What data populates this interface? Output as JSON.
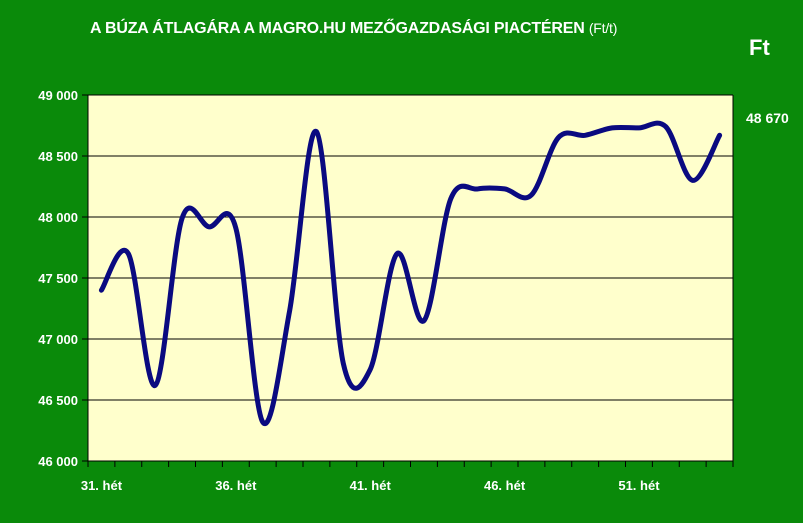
{
  "title": "A BÚZA ÁTLAGÁRA A MAGRO.HU MEZŐGAZDASÁGI PIACTÉREN",
  "title_unit": "(Ft/t)",
  "unit_label": "Ft",
  "last_value_label": "48 670",
  "colors": {
    "background": "#0a8a0a",
    "plot_area": "#ffffcc",
    "line": "#0a0a80",
    "grid": "#000000",
    "text": "#ffffff"
  },
  "chart_data": {
    "type": "line",
    "title": "A BÚZA ÁTLAGÁRA A MAGRO.HU MEZŐGAZDASÁGI PIACTÉREN (Ft/t)",
    "ylim": [
      46000,
      49000
    ],
    "yticks": [
      46000,
      46500,
      47000,
      47500,
      48000,
      48500,
      49000
    ],
    "ytick_labels": [
      "46 000",
      "46 500",
      "47 000",
      "47 500",
      "48 000",
      "48 500",
      "49 000"
    ],
    "xlim": [
      30.5,
      54.5
    ],
    "xticks": [
      31,
      36,
      41,
      46,
      51
    ],
    "xtick_labels": [
      "31. hét",
      "36. hét",
      "41. hét",
      "46. hét",
      "51. hét"
    ],
    "grid": "horizontal",
    "series": [
      {
        "x": [
          31,
          32,
          33,
          34,
          35,
          36,
          37,
          38,
          39,
          40,
          41,
          42,
          43,
          44,
          45,
          46,
          47,
          48,
          49,
          50,
          51,
          52,
          53,
          54
        ],
        "y": [
          47400,
          47700,
          46620,
          47990,
          47920,
          47910,
          46320,
          47230,
          48700,
          46800,
          46750,
          47700,
          47150,
          48150,
          48230,
          48230,
          48180,
          48650,
          48670,
          48730,
          48730,
          48740,
          48300,
          48670
        ]
      }
    ]
  }
}
